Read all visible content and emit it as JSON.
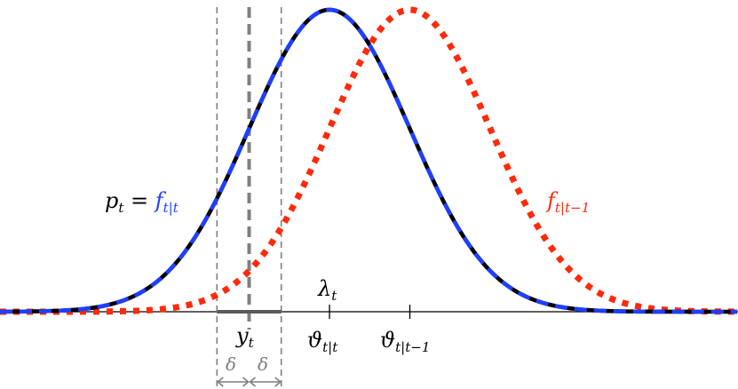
{
  "chart_data": {
    "type": "line",
    "title": "",
    "xlabel": "",
    "ylabel": "",
    "grid": false,
    "series": [
      {
        "name": "p_t = f_{t|t}",
        "mean": 0,
        "std": 1,
        "styles": [
          "solid",
          "dashed"
        ],
        "colors": [
          "#000000",
          "#1f3fff"
        ]
      },
      {
        "name": "f_{t|t-1}",
        "mean": 1,
        "std": 1,
        "styles": [
          "dotted"
        ],
        "colors": [
          "#ff2a0a"
        ]
      }
    ],
    "marks": {
      "y_t": -1,
      "delta": 0.4,
      "vartheta_t_t": 0,
      "vartheta_t_t_minus_1": 1,
      "lambda_t": 0
    }
  },
  "labels": {
    "p_label_main": "p",
    "p_label_sub": "t",
    "equals": " = ",
    "f_label_main": "f",
    "f_label_sub": "t|t",
    "f_prev_main": "f",
    "f_prev_sub": "t|t−1",
    "lambda_main": "λ",
    "lambda_sub": "t",
    "y_main": "y",
    "y_sub": "t",
    "vartheta1_main": "ϑ",
    "vartheta1_sub": "t|t",
    "vartheta2_main": "ϑ",
    "vartheta2_sub": "t|t−1",
    "delta_left": "δ",
    "delta_right": "δ"
  },
  "colors": {
    "black_curve": "#000000",
    "blue_dashed": "#1f3fff",
    "red_dotted": "#ff2a0a",
    "gray_marks": "#7f7f7f",
    "axis": "#000000"
  }
}
